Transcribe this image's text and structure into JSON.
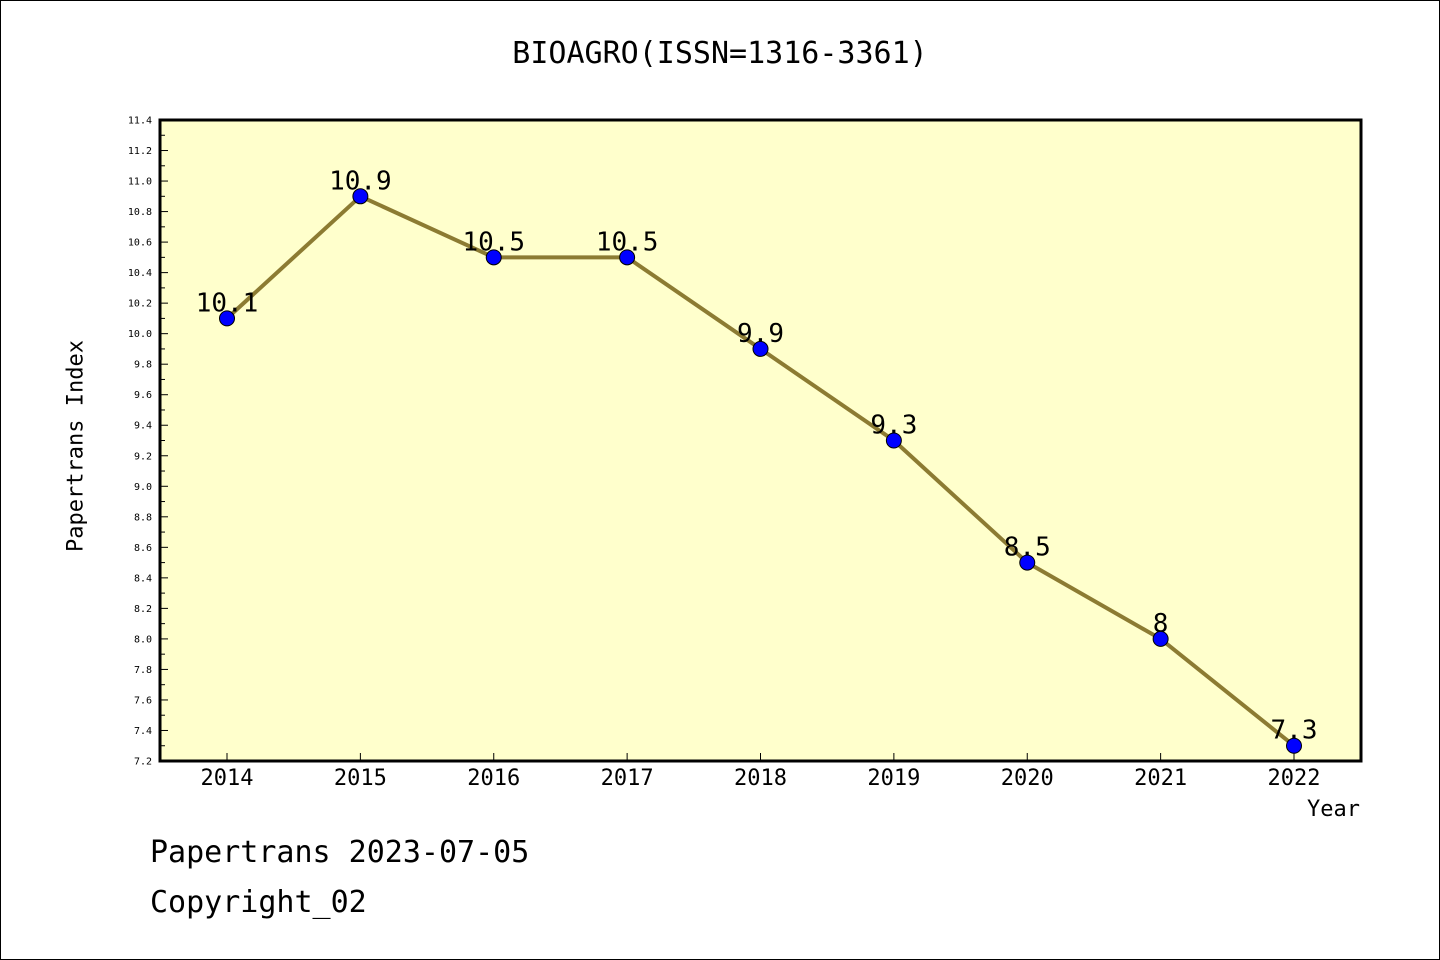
{
  "chart_data": {
    "type": "line",
    "title": "BIOAGRO(ISSN=1316-3361)",
    "xlabel": "Year",
    "ylabel": "Papertrans Index",
    "categories": [
      "2014",
      "2015",
      "2016",
      "2017",
      "2018",
      "2019",
      "2020",
      "2021",
      "2022"
    ],
    "values": [
      10.1,
      10.9,
      10.5,
      10.5,
      9.9,
      9.3,
      8.5,
      8,
      7.3
    ],
    "data_labels": [
      "10.1",
      "10.9",
      "10.5",
      "10.5",
      "9.9",
      "9.3",
      "8.5",
      "8",
      "7.3"
    ],
    "ylim": [
      7.2,
      11.4
    ],
    "yticks": [
      "7.2",
      "7.4",
      "7.6",
      "7.8",
      "8.0",
      "8.2",
      "8.4",
      "8.6",
      "8.8",
      "9.0",
      "9.2",
      "9.4",
      "9.6",
      "9.8",
      "10.0",
      "10.2",
      "10.4",
      "10.6",
      "10.8",
      "11.0",
      "11.2",
      "11.4"
    ],
    "grid": false,
    "legend": "none",
    "colors": {
      "line": "#8c7b32",
      "marker": "#0000ff",
      "plot_background": "#ffffcc"
    }
  },
  "footer": {
    "line1": "Papertrans 2023-07-05",
    "line2": "Copyright_02"
  }
}
